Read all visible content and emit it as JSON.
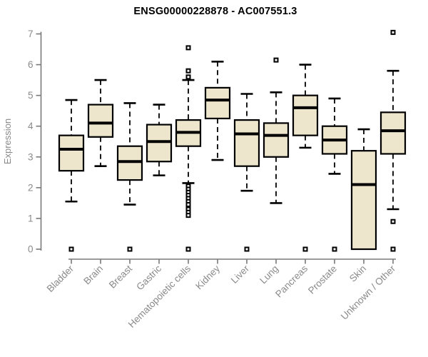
{
  "title": "ENSG00000228878 - AC007551.3",
  "colors": {
    "box_fill": "#EDE6CC",
    "box_border": "#000000",
    "median_line": "#000000",
    "whisker": "#000000",
    "outlier": "#000000",
    "axis_line": "#7a7a7a",
    "tick_text": "#8a8a8a",
    "title_text": "#000000",
    "background": "#ffffff"
  },
  "chart_data": {
    "type": "boxplot",
    "title": "ENSG00000228878 - AC007551.3",
    "xlabel": "",
    "ylabel": "Expression",
    "ylim": [
      0,
      7
    ],
    "yticks": [
      0,
      1,
      2,
      3,
      4,
      5,
      6,
      7
    ],
    "grid": false,
    "legend": false,
    "categories": [
      "Bladder",
      "Brain",
      "Breast",
      "Gastric",
      "Hematopoietic cells",
      "Kidney",
      "Liver",
      "Lung",
      "Pancreas",
      "Prostate",
      "Skin",
      "Unknown / Other"
    ],
    "series": [
      {
        "category": "Bladder",
        "whisker_low": 1.55,
        "q1": 2.55,
        "median": 3.25,
        "q3": 3.7,
        "whisker_high": 4.85,
        "outliers": [
          0
        ]
      },
      {
        "category": "Brain",
        "whisker_low": 2.7,
        "q1": 3.65,
        "median": 4.1,
        "q3": 4.7,
        "whisker_high": 5.5,
        "outliers": []
      },
      {
        "category": "Breast",
        "whisker_low": 1.45,
        "q1": 2.25,
        "median": 2.85,
        "q3": 3.35,
        "whisker_high": 4.75,
        "outliers": [
          0
        ]
      },
      {
        "category": "Gastric",
        "whisker_low": 2.4,
        "q1": 2.85,
        "median": 3.5,
        "q3": 4.05,
        "whisker_high": 4.7,
        "outliers": []
      },
      {
        "category": "Hematopoietic cells",
        "whisker_low": 2.15,
        "q1": 3.35,
        "median": 3.8,
        "q3": 4.2,
        "whisker_high": 5.5,
        "outliers": [
          6.55,
          5.8,
          5.6,
          2.05,
          1.95,
          1.85,
          1.75,
          1.65,
          1.55,
          1.45,
          1.3,
          1.2,
          1.1,
          0
        ]
      },
      {
        "category": "Kidney",
        "whisker_low": 2.9,
        "q1": 4.25,
        "median": 4.85,
        "q3": 5.25,
        "whisker_high": 6.1,
        "outliers": []
      },
      {
        "category": "Liver",
        "whisker_low": 1.9,
        "q1": 2.7,
        "median": 3.75,
        "q3": 4.2,
        "whisker_high": 5.05,
        "outliers": [
          0
        ]
      },
      {
        "category": "Lung",
        "whisker_low": 1.5,
        "q1": 3.0,
        "median": 3.7,
        "q3": 4.1,
        "whisker_high": 5.1,
        "outliers": [
          6.15
        ]
      },
      {
        "category": "Pancreas",
        "whisker_low": 3.3,
        "q1": 3.7,
        "median": 4.6,
        "q3": 5.0,
        "whisker_high": 6.0,
        "outliers": [
          0
        ]
      },
      {
        "category": "Prostate",
        "whisker_low": 2.45,
        "q1": 3.1,
        "median": 3.55,
        "q3": 4.0,
        "whisker_high": 4.9,
        "outliers": [
          0
        ]
      },
      {
        "category": "Skin",
        "whisker_low": 0,
        "q1": 0,
        "median": 2.1,
        "q3": 3.2,
        "whisker_high": 3.9,
        "outliers": []
      },
      {
        "category": "Unknown / Other",
        "whisker_low": 1.3,
        "q1": 3.1,
        "median": 3.85,
        "q3": 4.45,
        "whisker_high": 5.8,
        "outliers": [
          7.05,
          0.9,
          0
        ]
      }
    ]
  }
}
